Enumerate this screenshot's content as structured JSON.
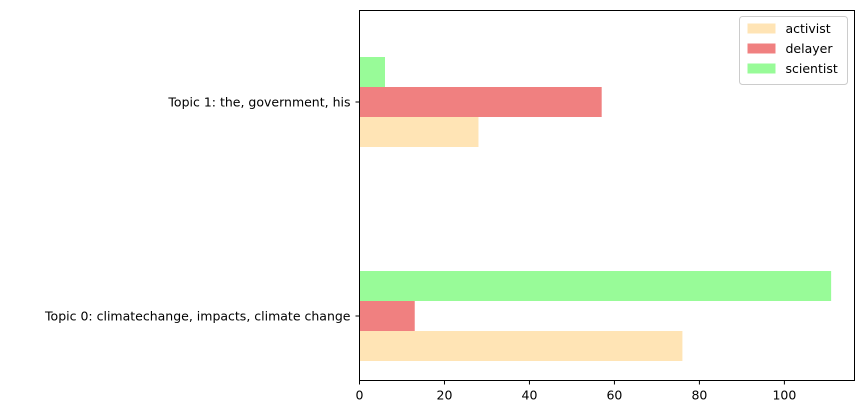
{
  "chart_data": {
    "type": "bar",
    "orientation": "horizontal",
    "categories": [
      "Topic 0: climatechange, impacts, climate change",
      "Topic 1: the, government, his"
    ],
    "series": [
      {
        "name": "activist",
        "values": [
          76,
          28
        ],
        "color": "#FFE4B5"
      },
      {
        "name": "delayer",
        "values": [
          13,
          57
        ],
        "color": "#F08080"
      },
      {
        "name": "scientist",
        "values": [
          111,
          6
        ],
        "color": "#98FB98"
      }
    ],
    "xticks": [
      0,
      20,
      40,
      60,
      80,
      100
    ],
    "xlim": [
      0,
      116.5
    ],
    "title": "",
    "xlabel": "",
    "ylabel": "",
    "grid": false,
    "legend_position": "top-right"
  }
}
